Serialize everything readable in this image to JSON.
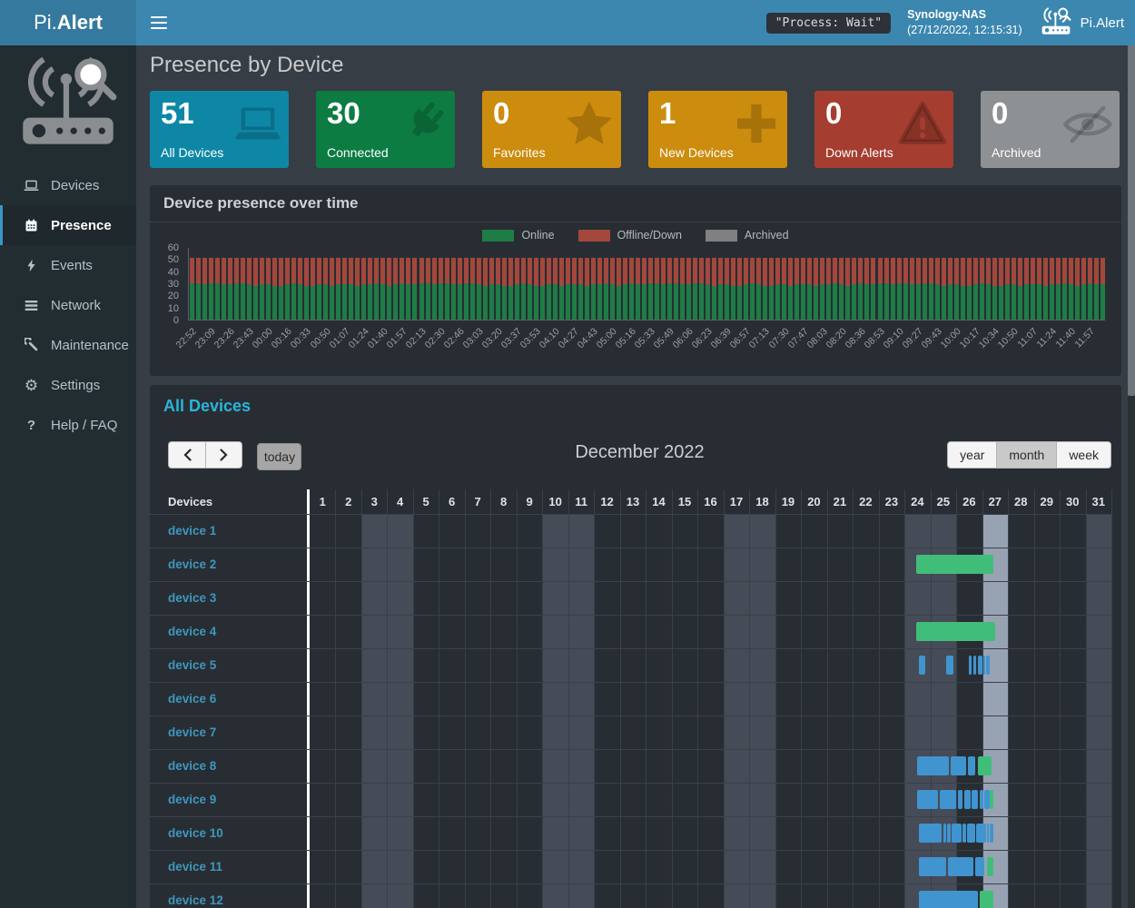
{
  "navbar": {
    "brand_prefix": "Pi.",
    "brand_bold": "Alert",
    "process_badge": "\"Process: Wait\"",
    "host_name": "Synology-NAS",
    "host_time": "(27/12/2022, 12:15:31)",
    "app_name": "Pi.Alert"
  },
  "sidebar": {
    "items": [
      {
        "label": "Devices",
        "icon": "laptop",
        "active": false
      },
      {
        "label": "Presence",
        "icon": "calendar",
        "active": true
      },
      {
        "label": "Events",
        "icon": "bolt",
        "active": false
      },
      {
        "label": "Network",
        "icon": "network",
        "active": false
      },
      {
        "label": "Maintenance",
        "icon": "wrench",
        "active": false
      },
      {
        "label": "Settings",
        "icon": "gear",
        "active": false
      },
      {
        "label": "Help / FAQ",
        "icon": "question",
        "active": false
      }
    ]
  },
  "page": {
    "title": "Presence by Device"
  },
  "summary_cards": [
    {
      "value": "51",
      "label": "All Devices",
      "color": "#0e87a7",
      "icon": "laptop"
    },
    {
      "value": "30",
      "label": "Connected",
      "color": "#0c7c43",
      "icon": "plug"
    },
    {
      "value": "0",
      "label": "Favorites",
      "color": "#cc8c0d",
      "icon": "star"
    },
    {
      "value": "1",
      "label": "New Devices",
      "color": "#cc8c0d",
      "icon": "plus"
    },
    {
      "value": "0",
      "label": "Down Alerts",
      "color": "#a53e30",
      "icon": "warning"
    },
    {
      "value": "0",
      "label": "Archived",
      "color": "#8d9194",
      "icon": "eye-slash"
    }
  ],
  "chart_panel": {
    "title": "Device presence over time"
  },
  "chart_data": {
    "type": "bar",
    "stacked": true,
    "title": "Device presence over time",
    "legend_position": "top",
    "series_meta": [
      {
        "name": "Online",
        "color": "#1e7c46"
      },
      {
        "name": "Offline/Down",
        "color": "#a4473c"
      },
      {
        "name": "Archived",
        "color": "#808080"
      }
    ],
    "ylim": [
      0,
      60
    ],
    "yticks": [
      60,
      50,
      40,
      30,
      20,
      10,
      0
    ],
    "total_devices": 51,
    "archived_value": 0,
    "bars_per_tick": 3,
    "x_tick_labels": [
      "22:52",
      "23:09",
      "23:26",
      "23:43",
      "00:00",
      "00:16",
      "00:33",
      "00:50",
      "01:07",
      "01:24",
      "01:40",
      "01:57",
      "02:13",
      "02:30",
      "02:46",
      "03:03",
      "03:20",
      "03:37",
      "03:53",
      "04:10",
      "04:27",
      "04:43",
      "05:00",
      "05:16",
      "05:33",
      "05:49",
      "06:06",
      "06:23",
      "06:39",
      "06:57",
      "07:13",
      "07:30",
      "07:47",
      "08:03",
      "08:20",
      "08:36",
      "08:53",
      "09:10",
      "09:27",
      "09:43",
      "10:00",
      "10:17",
      "10:34",
      "10:50",
      "11:07",
      "11:24",
      "11:40",
      "11:57"
    ],
    "online_per_bar": [
      30,
      30,
      29,
      30,
      30,
      29,
      29,
      30,
      30,
      29,
      28,
      29,
      29,
      28,
      28,
      29,
      30,
      29,
      28,
      28,
      29,
      29,
      28,
      29,
      29,
      29,
      28,
      29,
      29,
      30,
      29,
      28,
      29,
      30,
      29,
      29,
      30,
      30,
      29,
      30,
      30,
      29,
      29,
      30,
      30,
      29,
      28,
      29,
      29,
      28,
      28,
      29,
      30,
      29,
      28,
      28,
      29,
      29,
      28,
      29,
      29,
      29,
      28,
      29,
      29,
      30,
      29,
      28,
      29,
      30,
      29,
      29,
      30,
      30,
      29,
      30,
      30,
      29,
      29,
      30,
      30,
      29,
      28,
      29,
      29,
      28,
      28,
      29,
      30,
      29,
      28,
      28,
      29,
      29,
      28,
      29,
      29,
      29,
      28,
      29,
      29,
      30,
      29,
      28,
      29,
      30,
      29,
      29,
      30,
      30,
      29,
      30,
      30,
      29,
      29,
      30,
      30,
      29,
      28,
      29,
      29,
      28,
      28,
      29,
      30,
      29,
      28,
      28,
      29,
      29,
      28,
      29,
      29,
      29,
      28,
      29,
      29,
      30,
      29,
      28,
      29,
      30,
      29,
      29
    ]
  },
  "calendar": {
    "title": "All Devices",
    "nav": {
      "today_label": "today"
    },
    "month_title": "December 2022",
    "views": [
      {
        "label": "year",
        "active": false
      },
      {
        "label": "month",
        "active": true
      },
      {
        "label": "week",
        "active": false
      }
    ],
    "grid": {
      "devices_header": "Devices",
      "num_days": 31,
      "weekend_days": [
        3,
        4,
        10,
        11,
        17,
        18,
        24,
        25,
        31
      ],
      "today_day": 27,
      "bar_colors": {
        "green": "#41bd7a",
        "blue": "#4094cf"
      },
      "rows": [
        {
          "name": "device 1",
          "bars": []
        },
        {
          "name": "device 2",
          "bars": [
            {
              "c": "green",
              "s": 24.45,
              "e": 27.45
            }
          ]
        },
        {
          "name": "device 3",
          "bars": []
        },
        {
          "name": "device 4",
          "bars": [
            {
              "c": "green",
              "s": 24.45,
              "e": 27.5
            }
          ]
        },
        {
          "name": "device 5",
          "bars": [
            {
              "c": "blue",
              "s": 24.55,
              "e": 24.8
            },
            {
              "c": "blue",
              "s": 25.6,
              "e": 25.9
            },
            {
              "c": "blue",
              "s": 26.5,
              "e": 26.6
            },
            {
              "c": "blue",
              "s": 26.68,
              "e": 26.78
            },
            {
              "c": "blue",
              "s": 26.85,
              "e": 27.0
            },
            {
              "c": "blue",
              "s": 27.05,
              "e": 27.12
            },
            {
              "c": "blue",
              "s": 27.15,
              "e": 27.3
            }
          ]
        },
        {
          "name": "device 6",
          "bars": []
        },
        {
          "name": "device 7",
          "bars": []
        },
        {
          "name": "device 8",
          "bars": [
            {
              "c": "blue",
              "s": 24.5,
              "e": 25.7
            },
            {
              "c": "blue",
              "s": 25.77,
              "e": 26.4
            },
            {
              "c": "blue",
              "s": 26.47,
              "e": 26.72
            },
            {
              "c": "green",
              "s": 26.85,
              "e": 27.38
            }
          ]
        },
        {
          "name": "device 9",
          "bars": [
            {
              "c": "blue",
              "s": 24.5,
              "e": 25.3
            },
            {
              "c": "blue",
              "s": 25.35,
              "e": 26.0
            },
            {
              "c": "blue",
              "s": 26.06,
              "e": 26.25
            },
            {
              "c": "blue",
              "s": 26.3,
              "e": 26.55
            },
            {
              "c": "blue",
              "s": 26.6,
              "e": 26.85
            },
            {
              "c": "blue",
              "s": 26.9,
              "e": 27.05
            },
            {
              "c": "blue",
              "s": 27.1,
              "e": 27.28
            },
            {
              "c": "green",
              "s": 27.3,
              "e": 27.45
            }
          ]
        },
        {
          "name": "device 10",
          "bars": [
            {
              "c": "blue",
              "s": 24.55,
              "e": 25.45
            },
            {
              "c": "blue",
              "s": 25.5,
              "e": 25.62
            },
            {
              "c": "blue",
              "s": 25.66,
              "e": 25.78
            },
            {
              "c": "blue",
              "s": 25.82,
              "e": 26.2
            },
            {
              "c": "blue",
              "s": 26.25,
              "e": 26.37
            },
            {
              "c": "blue",
              "s": 26.42,
              "e": 26.72
            },
            {
              "c": "blue",
              "s": 26.76,
              "e": 27.15
            },
            {
              "c": "blue",
              "s": 27.18,
              "e": 27.26
            },
            {
              "c": "blue",
              "s": 27.3,
              "e": 27.42
            }
          ]
        },
        {
          "name": "device 11",
          "bars": [
            {
              "c": "blue",
              "s": 24.55,
              "e": 25.6
            },
            {
              "c": "blue",
              "s": 25.68,
              "e": 26.68
            },
            {
              "c": "blue",
              "s": 26.72,
              "e": 27.1
            },
            {
              "c": "green",
              "s": 27.2,
              "e": 27.45
            }
          ]
        },
        {
          "name": "device 12",
          "bars": [
            {
              "c": "blue",
              "s": 24.55,
              "e": 26.85
            },
            {
              "c": "green",
              "s": 26.9,
              "e": 27.45
            }
          ]
        }
      ]
    }
  }
}
